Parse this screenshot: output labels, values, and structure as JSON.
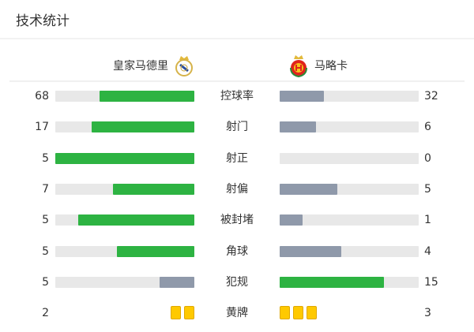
{
  "title": "技术统计",
  "home": {
    "name": "皇家马德里",
    "crest": "real-madrid-crest-icon"
  },
  "away": {
    "name": "马略卡",
    "crest": "mallorca-crest-icon"
  },
  "colors": {
    "lead": "#2db342",
    "trail": "#8f99aa",
    "track": "#e8e8e8",
    "card": "#ffc900"
  },
  "stats": [
    {
      "label": "控球率",
      "home": 68,
      "away": 32
    },
    {
      "label": "射门",
      "home": 17,
      "away": 6
    },
    {
      "label": "射正",
      "home": 5,
      "away": 0
    },
    {
      "label": "射偏",
      "home": 7,
      "away": 5
    },
    {
      "label": "被封堵",
      "home": 5,
      "away": 1
    },
    {
      "label": "角球",
      "home": 5,
      "away": 4
    },
    {
      "label": "犯规",
      "home": 5,
      "away": 15
    },
    {
      "label": "黄牌",
      "home": 2,
      "away": 3,
      "type": "cards"
    }
  ]
}
